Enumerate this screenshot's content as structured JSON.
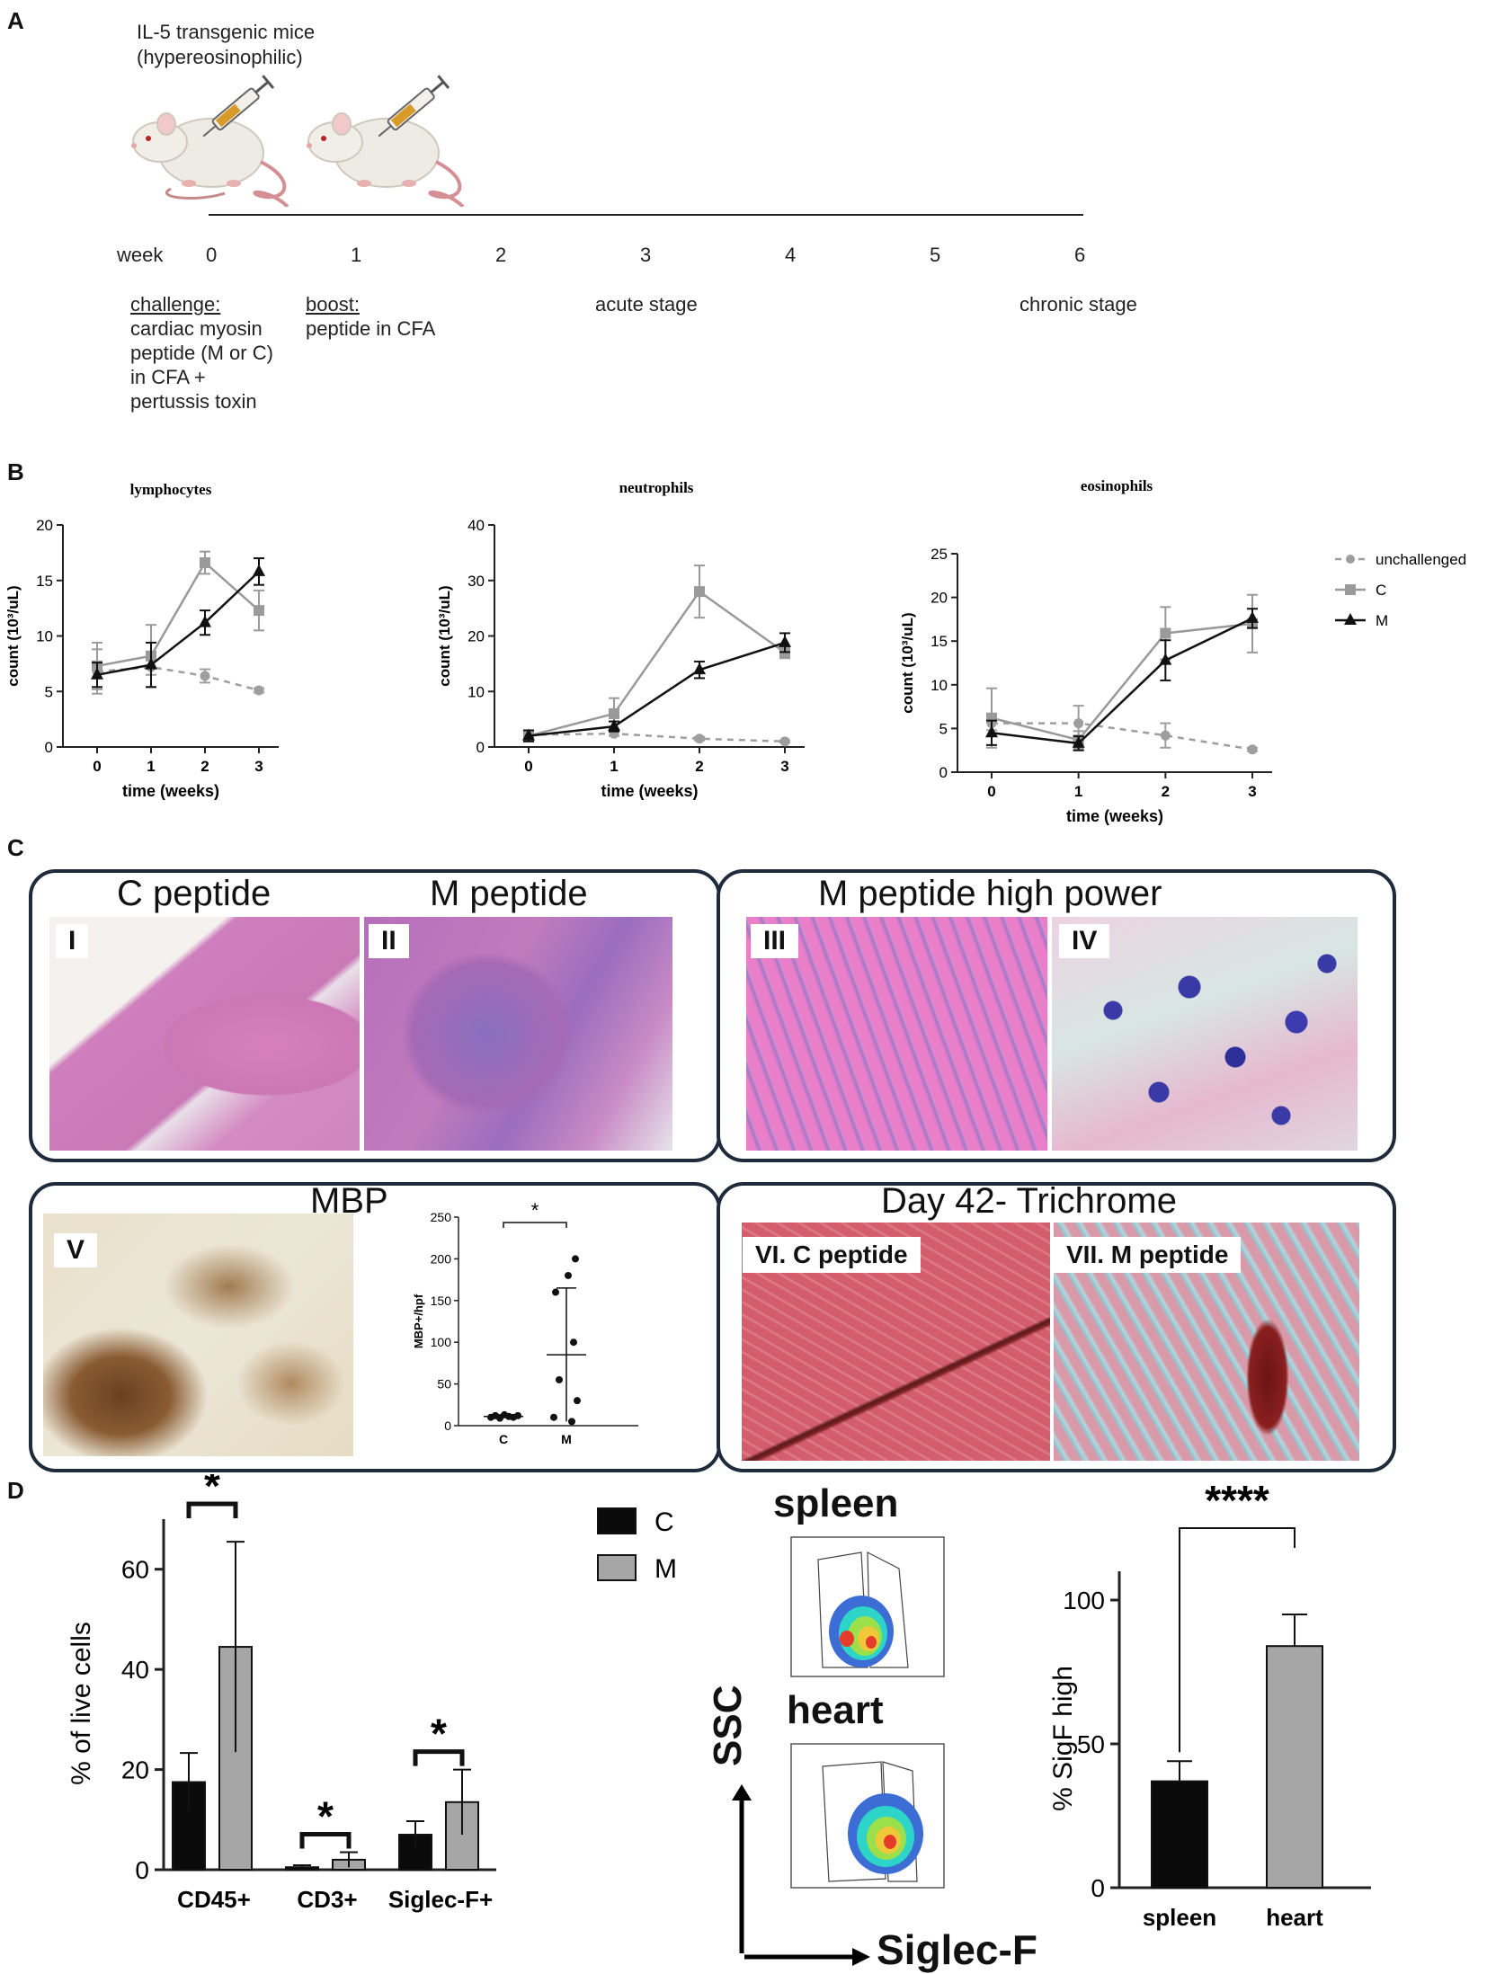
{
  "panels": {
    "a": "A",
    "b": "B",
    "c": "C",
    "d": "D"
  },
  "panelA": {
    "title": "IL-5 transgenic mice",
    "subtitle": "(hypereosinophilic)",
    "week_label": "week",
    "weeks": [
      "0",
      "1",
      "2",
      "3",
      "4",
      "5",
      "6"
    ],
    "challenge_title": "challenge:",
    "challenge_lines": [
      "cardiac myosin",
      "peptide (M or C)",
      "in CFA +",
      "pertussis toxin"
    ],
    "boost_title": "boost:",
    "boost_text": "peptide in CFA",
    "acute": "acute stage",
    "chronic": "chronic stage"
  },
  "panelC": {
    "title_c": "C peptide",
    "title_m": "M peptide",
    "title_hp": "M peptide high power",
    "title_mbp": "MBP",
    "title_tri": "Day 42- Trichrome",
    "label_I": "I",
    "label_II": "II",
    "label_III": "III",
    "label_IV": "IV",
    "label_V": "V",
    "label_VI": "VI. C peptide",
    "label_VII": "VII. M peptide"
  },
  "colors": {
    "unchallenged": "#9e9e9e",
    "C": "#9a9a9a",
    "M": "#111111",
    "bar_C": "#0a0a0a",
    "bar_M": "#a6a6a6",
    "box_border": "#1d2b3a"
  },
  "panelD": {
    "spleen": "spleen",
    "heart": "heart",
    "ssc": "SSC",
    "siglec": "Siglec-F"
  },
  "chart_data": [
    {
      "id": "lymphocytes",
      "type": "line",
      "title": "lymphocytes",
      "xlabel": "time (weeks)",
      "ylabel": "count (10³/uL)",
      "x": [
        0,
        1,
        2,
        3
      ],
      "xticks": [
        "0",
        "1",
        "2",
        "3"
      ],
      "yticks": [
        "0",
        "5",
        "10",
        "15",
        "20"
      ],
      "ylim": [
        0,
        20
      ],
      "series": [
        {
          "name": "unchallenged",
          "values": [
            6.8,
            7.2,
            6.4,
            5.1
          ],
          "err": [
            2.0,
            0.7,
            0.6,
            0.2
          ]
        },
        {
          "name": "C",
          "values": [
            7.3,
            8.2,
            16.6,
            12.3
          ],
          "err": [
            2.1,
            2.8,
            1.0,
            1.8
          ]
        },
        {
          "name": "M",
          "values": [
            6.5,
            7.4,
            11.2,
            15.8
          ],
          "err": [
            1.1,
            2.0,
            1.1,
            1.2
          ]
        }
      ]
    },
    {
      "id": "neutrophils",
      "type": "line",
      "title": "neutrophils",
      "xlabel": "time (weeks)",
      "ylabel": "count (10³/uL)",
      "x": [
        0,
        1,
        2,
        3
      ],
      "xticks": [
        "0",
        "1",
        "2",
        "3"
      ],
      "yticks": [
        "0",
        "10",
        "20",
        "30",
        "40"
      ],
      "ylim": [
        0,
        40
      ],
      "series": [
        {
          "name": "unchallenged",
          "values": [
            2.2,
            2.4,
            1.5,
            1.0
          ],
          "err": [
            0.4,
            0.4,
            0.3,
            0.2
          ]
        },
        {
          "name": "C",
          "values": [
            2.0,
            6.0,
            28.0,
            17.0
          ],
          "err": [
            0.6,
            2.8,
            4.7,
            1.0
          ]
        },
        {
          "name": "M",
          "values": [
            2.0,
            3.7,
            13.9,
            18.8
          ],
          "err": [
            1.0,
            0.9,
            1.5,
            1.7
          ]
        }
      ]
    },
    {
      "id": "eosinophils",
      "type": "line",
      "title": "eosinophils",
      "xlabel": "time (weeks)",
      "ylabel": "count (10³/uL)",
      "x": [
        0,
        1,
        2,
        3
      ],
      "xticks": [
        "0",
        "1",
        "2",
        "3"
      ],
      "yticks": [
        "0",
        "5",
        "10",
        "15",
        "20",
        "25"
      ],
      "ylim": [
        0,
        25
      ],
      "legend": [
        "unchallenged",
        "C",
        "M"
      ],
      "series": [
        {
          "name": "unchallenged",
          "values": [
            5.6,
            5.6,
            4.2,
            2.6
          ],
          "err": [
            0.8,
            2.0,
            1.4,
            0.2
          ]
        },
        {
          "name": "C",
          "values": [
            6.2,
            3.7,
            15.9,
            17.0
          ],
          "err": [
            3.4,
            1.0,
            3.0,
            3.3
          ]
        },
        {
          "name": "M",
          "values": [
            4.5,
            3.3,
            12.8,
            17.6
          ],
          "err": [
            1.4,
            0.8,
            2.3,
            1.1
          ]
        }
      ]
    },
    {
      "id": "mbp",
      "type": "scatter",
      "ylabel": "MBP+/hpf",
      "categories": [
        "C",
        "M"
      ],
      "yticks": [
        "0",
        "50",
        "100",
        "150",
        "200",
        "250"
      ],
      "ylim": [
        0,
        250
      ],
      "significance": "*",
      "points": {
        "C": [
          10,
          12,
          9,
          13,
          11,
          10,
          12
        ],
        "M": [
          200,
          180,
          160,
          100,
          55,
          10,
          30,
          5
        ]
      },
      "mean": [
        11,
        85
      ],
      "sd": [
        2,
        80
      ]
    },
    {
      "id": "live-cells",
      "type": "bar",
      "ylabel": "% of live cells",
      "categories": [
        "CD45+",
        "CD3+",
        "Siglec-F+"
      ],
      "yticks": [
        "0",
        "20",
        "40",
        "60"
      ],
      "ylim": [
        0,
        70
      ],
      "legend": [
        "C",
        "M"
      ],
      "series": [
        {
          "name": "C",
          "values": [
            17.5,
            0.5,
            7.0
          ],
          "err": [
            5.8,
            0.4,
            2.7
          ]
        },
        {
          "name": "M",
          "values": [
            44.5,
            2.0,
            13.5
          ],
          "err": [
            21.0,
            1.5,
            6.5
          ]
        }
      ],
      "significance": [
        "*",
        "*",
        "*"
      ]
    },
    {
      "id": "sigf-high",
      "type": "bar",
      "ylabel": "% SigF high",
      "categories": [
        "spleen",
        "heart"
      ],
      "yticks": [
        "0",
        "50",
        "100"
      ],
      "ylim": [
        0,
        110
      ],
      "values": [
        37,
        84
      ],
      "err": [
        7,
        11
      ],
      "significance": "****"
    }
  ]
}
